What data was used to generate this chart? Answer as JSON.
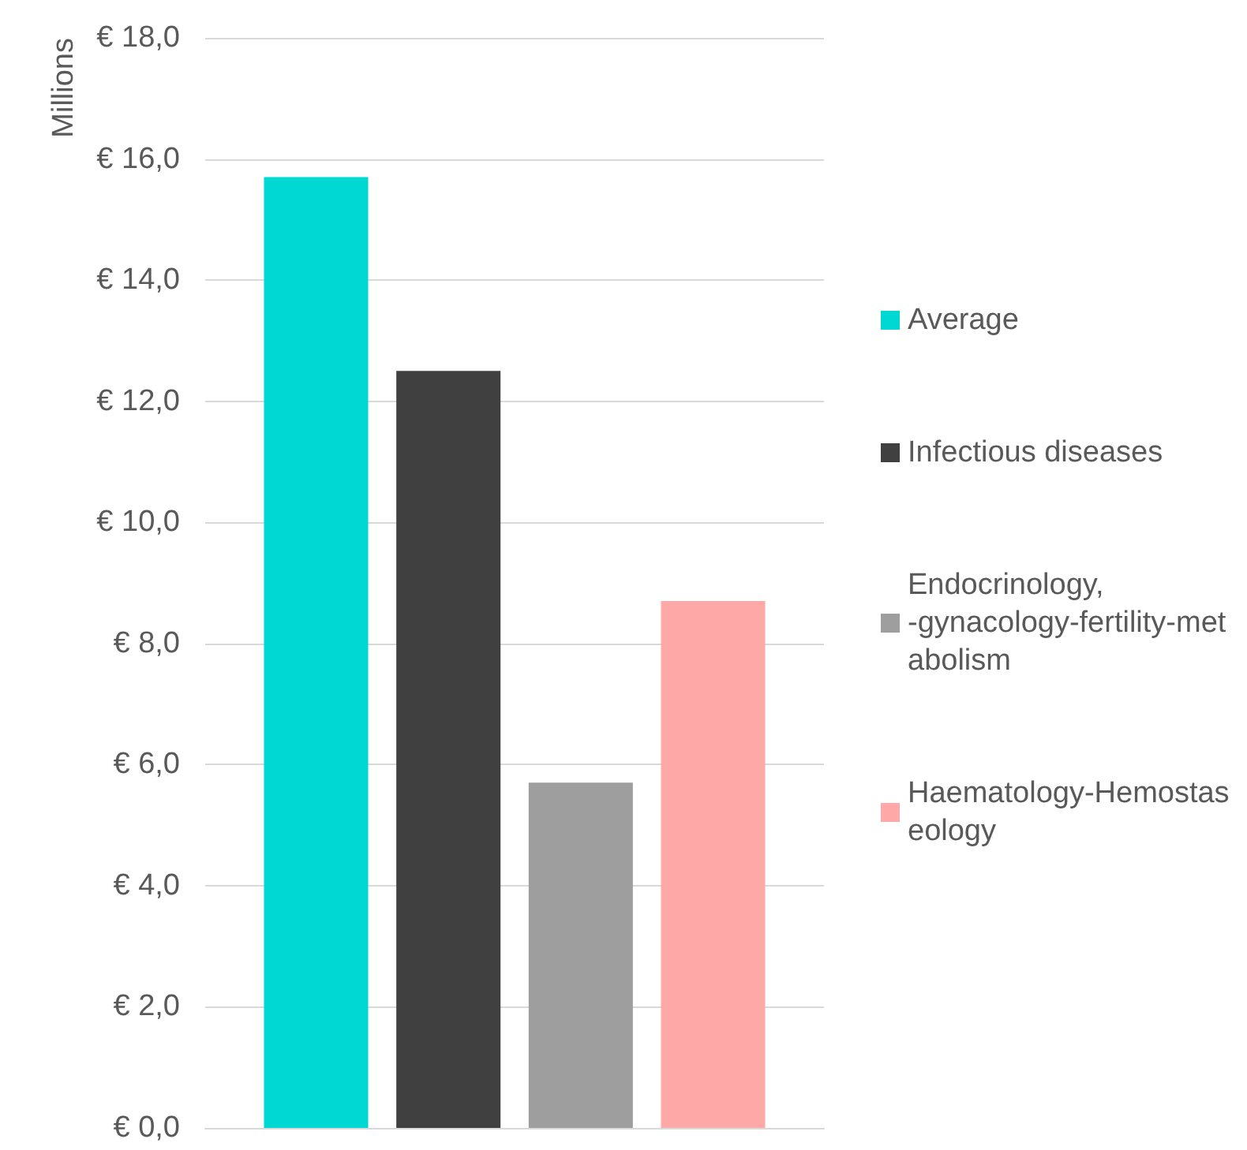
{
  "chart_data": {
    "type": "bar",
    "ylabel": "Millions",
    "categories": [
      null
    ],
    "series": [
      {
        "name": "Average",
        "color": "#00d9d3",
        "values": [
          15.7
        ]
      },
      {
        "name": "Infectious diseases",
        "color": "#404040",
        "values": [
          12.5
        ]
      },
      {
        "name": "Endocrinology, -gynacology-fertility-metabolism",
        "color": "#9e9e9e",
        "values": [
          5.7
        ]
      },
      {
        "name": "Haematology-Hemostaseology",
        "color": "#ffa8a8",
        "values": [
          8.7
        ]
      }
    ],
    "ylim": [
      0,
      18
    ],
    "yticks": [
      {
        "value": 0,
        "label": "€ 0,0"
      },
      {
        "value": 2,
        "label": "€ 2,0"
      },
      {
        "value": 4,
        "label": "€ 4,0"
      },
      {
        "value": 6,
        "label": "€ 6,0"
      },
      {
        "value": 8,
        "label": "€ 8,0"
      },
      {
        "value": 10,
        "label": "€ 10,0"
      },
      {
        "value": 12,
        "label": "€ 12,0"
      },
      {
        "value": 14,
        "label": "€ 14,0"
      },
      {
        "value": 16,
        "label": "€ 16,0"
      },
      {
        "value": 18,
        "label": "€ 18,0"
      }
    ],
    "grid": "y",
    "legend": "right"
  }
}
